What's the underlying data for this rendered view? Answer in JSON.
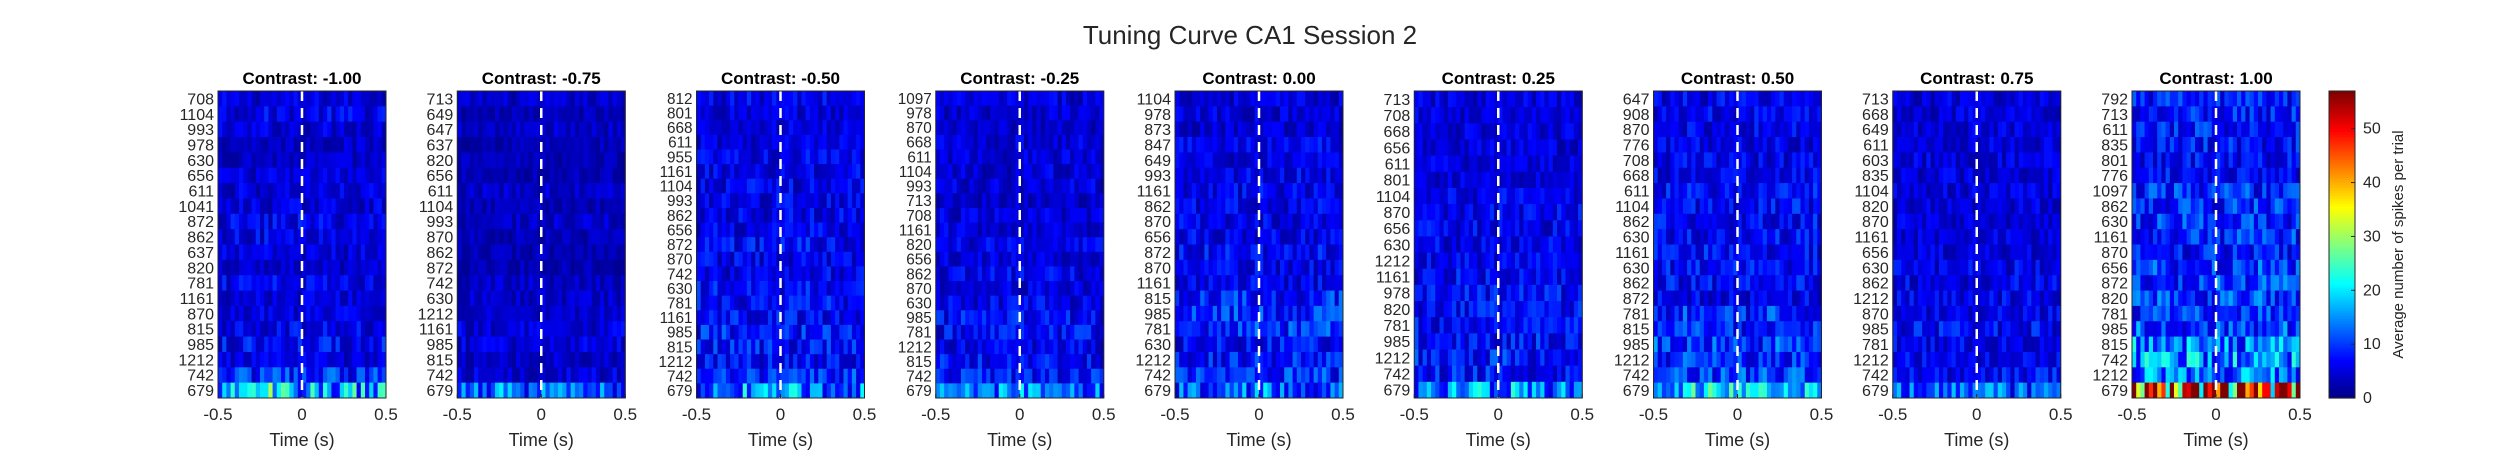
{
  "title": "Tuning Curve CA1 Session 2",
  "colorbar": {
    "label": "Average number of spikes per trial",
    "min": 0,
    "max": 57,
    "ticks": [
      0,
      10,
      20,
      30,
      40,
      50
    ],
    "colormap": "jet"
  },
  "chart_data": [
    {
      "type": "heatmap",
      "title": "Contrast: -1.00",
      "xlabel": "Time (s)",
      "xlim": [
        -0.5,
        0.5
      ],
      "xticks": [
        "-0.5",
        "0",
        "0.5"
      ],
      "neurons": [
        "708",
        "1104",
        "993",
        "978",
        "630",
        "656",
        "611",
        "1041",
        "872",
        "862",
        "637",
        "820",
        "781",
        "1161",
        "870",
        "815",
        "985",
        "1212",
        "742",
        "679"
      ],
      "mean_rate": [
        5,
        6,
        5,
        4,
        4,
        5,
        5,
        5,
        6,
        6,
        5,
        4,
        6,
        5,
        5,
        6,
        7,
        5,
        9,
        17
      ]
    },
    {
      "type": "heatmap",
      "title": "Contrast: -0.75",
      "xlabel": "Time (s)",
      "xlim": [
        -0.5,
        0.5
      ],
      "xticks": [
        "-0.5",
        "0",
        "0.5"
      ],
      "neurons": [
        "713",
        "649",
        "647",
        "637",
        "820",
        "656",
        "611",
        "1104",
        "993",
        "870",
        "862",
        "872",
        "742",
        "630",
        "1212",
        "1161",
        "985",
        "815",
        "742",
        "679"
      ],
      "mean_rate": [
        4,
        3,
        4,
        3,
        3,
        3,
        4,
        3,
        4,
        3,
        3,
        3,
        4,
        4,
        4,
        5,
        5,
        4,
        5,
        11
      ]
    },
    {
      "type": "heatmap",
      "title": "Contrast: -0.50",
      "xlabel": "Time (s)",
      "xlim": [
        -0.5,
        0.5
      ],
      "xticks": [
        "-0.5",
        "0",
        "0.5"
      ],
      "neurons": [
        "812",
        "801",
        "668",
        "611",
        "955",
        "1161",
        "1104",
        "993",
        "862",
        "656",
        "872",
        "870",
        "742",
        "630",
        "781",
        "1161",
        "985",
        "815",
        "1212",
        "742",
        "679"
      ],
      "mean_rate": [
        6,
        5,
        5,
        5,
        6,
        6,
        6,
        6,
        6,
        6,
        7,
        6,
        6,
        7,
        7,
        7,
        8,
        8,
        7,
        9,
        13
      ]
    },
    {
      "type": "heatmap",
      "title": "Contrast: -0.25",
      "xlabel": "Time (s)",
      "xlim": [
        -0.5,
        0.5
      ],
      "xticks": [
        "-0.5",
        "0",
        "0.5"
      ],
      "neurons": [
        "1097",
        "978",
        "870",
        "668",
        "611",
        "1104",
        "993",
        "713",
        "708",
        "1161",
        "820",
        "656",
        "862",
        "870",
        "630",
        "985",
        "781",
        "1212",
        "815",
        "742",
        "679"
      ],
      "mean_rate": [
        5,
        5,
        4,
        5,
        5,
        5,
        5,
        4,
        5,
        5,
        6,
        5,
        6,
        5,
        6,
        7,
        7,
        6,
        7,
        8,
        12
      ]
    },
    {
      "type": "heatmap",
      "title": "Contrast: 0.00",
      "xlabel": "Time (s)",
      "xlim": [
        -0.5,
        0.5
      ],
      "xticks": [
        "-0.5",
        "0",
        "0.5"
      ],
      "neurons": [
        "1104",
        "978",
        "873",
        "847",
        "649",
        "993",
        "1161",
        "862",
        "870",
        "656",
        "872",
        "870",
        "1161",
        "815",
        "985",
        "781",
        "630",
        "1212",
        "742",
        "679"
      ],
      "mean_rate": [
        5,
        5,
        5,
        6,
        5,
        6,
        6,
        6,
        6,
        6,
        7,
        6,
        6,
        9,
        9,
        9,
        7,
        8,
        9,
        11
      ]
    },
    {
      "type": "heatmap",
      "title": "Contrast: 0.25",
      "xlabel": "Time (s)",
      "xlim": [
        -0.5,
        0.5
      ],
      "xticks": [
        "-0.5",
        "0",
        "0.5"
      ],
      "neurons": [
        "713",
        "708",
        "668",
        "656",
        "611",
        "801",
        "1104",
        "870",
        "656",
        "630",
        "1212",
        "1161",
        "978",
        "820",
        "781",
        "985",
        "1212",
        "742",
        "679"
      ],
      "mean_rate": [
        5,
        5,
        5,
        5,
        5,
        5,
        6,
        6,
        6,
        6,
        6,
        7,
        7,
        7,
        7,
        8,
        8,
        8,
        13
      ]
    },
    {
      "type": "heatmap",
      "title": "Contrast: 0.50",
      "xlabel": "Time (s)",
      "xlim": [
        -0.5,
        0.5
      ],
      "xticks": [
        "-0.5",
        "0",
        "0.5"
      ],
      "neurons": [
        "647",
        "908",
        "870",
        "776",
        "708",
        "668",
        "611",
        "1104",
        "862",
        "630",
        "1161",
        "630",
        "862",
        "872",
        "781",
        "815",
        "985",
        "1212",
        "742",
        "679"
      ],
      "mean_rate": [
        6,
        6,
        6,
        6,
        6,
        6,
        7,
        7,
        7,
        7,
        7,
        7,
        7,
        6,
        9,
        9,
        10,
        9,
        10,
        15
      ]
    },
    {
      "type": "heatmap",
      "title": "Contrast: 0.75",
      "xlabel": "Time (s)",
      "xlim": [
        -0.5,
        0.5
      ],
      "xticks": [
        "-0.5",
        "0",
        "0.5"
      ],
      "neurons": [
        "713",
        "668",
        "649",
        "611",
        "603",
        "835",
        "1104",
        "820",
        "870",
        "1161",
        "656",
        "630",
        "862",
        "1212",
        "870",
        "985",
        "781",
        "1212",
        "742",
        "679"
      ],
      "mean_rate": [
        5,
        5,
        5,
        5,
        5,
        5,
        5,
        5,
        5,
        5,
        5,
        6,
        6,
        6,
        6,
        7,
        6,
        6,
        7,
        11
      ]
    },
    {
      "type": "heatmap",
      "title": "Contrast: 1.00",
      "xlabel": "Time (s)",
      "xlim": [
        -0.5,
        0.5
      ],
      "xticks": [
        "-0.5",
        "0",
        "0.5"
      ],
      "neurons": [
        "792",
        "713",
        "611",
        "835",
        "801",
        "776",
        "1097",
        "862",
        "630",
        "1161",
        "870",
        "656",
        "872",
        "820",
        "781",
        "985",
        "815",
        "742",
        "1212",
        "679"
      ],
      "mean_rate": [
        8,
        8,
        8,
        8,
        7,
        7,
        9,
        9,
        9,
        9,
        8,
        10,
        10,
        10,
        9,
        11,
        14,
        15,
        13,
        43
      ]
    }
  ]
}
